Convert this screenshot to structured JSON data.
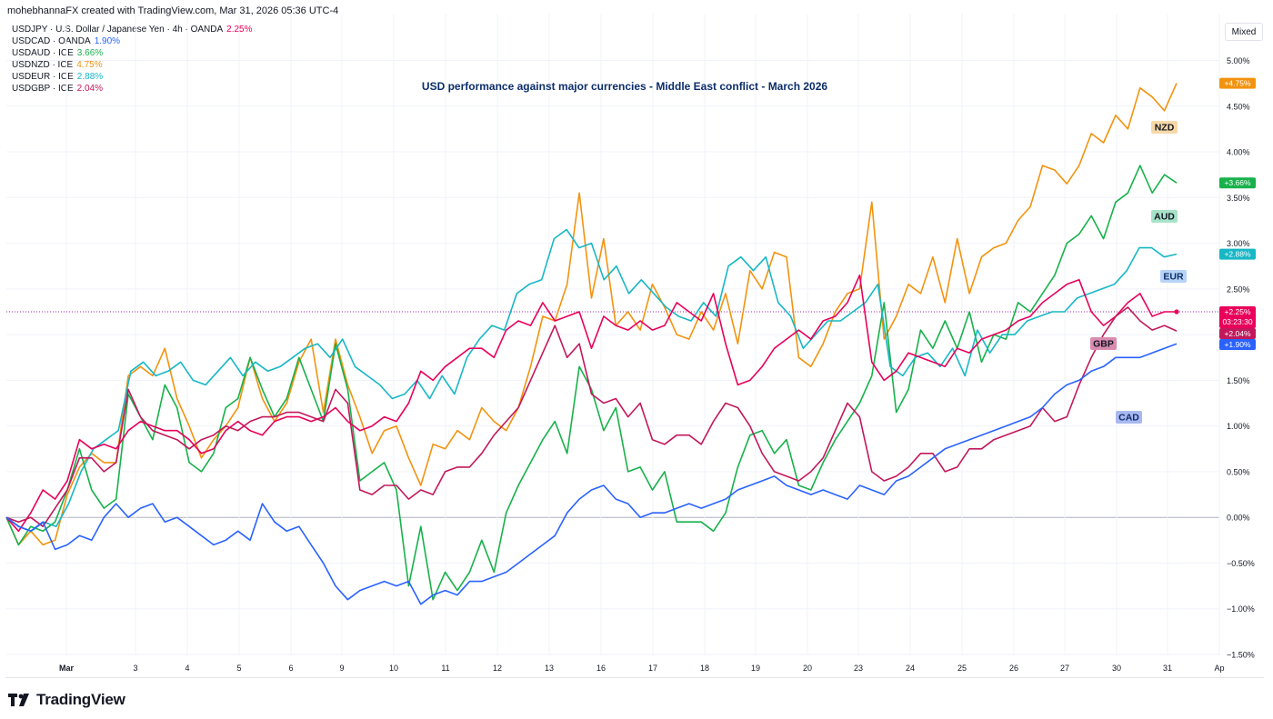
{
  "credit": "mohebhannaFX created with TradingView.com, Mar 31, 2026 05:36 UTC-4",
  "legend": [
    {
      "label": "USDJPY · U.S. Dollar / Japanese Yen · 4h · OANDA",
      "value": "2.25%",
      "color": "#e8005a"
    },
    {
      "label": "USDCAD · OANDA",
      "value": "1.90%",
      "color": "#2962ff"
    },
    {
      "label": "USDAUD · ICE",
      "value": "3.66%",
      "color": "#18b14b"
    },
    {
      "label": "USDNZD · ICE",
      "value": "4.75%",
      "color": "#f2930f"
    },
    {
      "label": "USDEUR · ICE",
      "value": "2.88%",
      "color": "#17b7c5"
    },
    {
      "label": "USDGBP · ICE",
      "value": "2.04%",
      "color": "#c2185b"
    }
  ],
  "mixed_label": "Mixed",
  "brand": "TradingView",
  "chart_data": {
    "type": "line",
    "title": "USD performance against major currencies - Middle East conflict - March 2026",
    "x_ticks": [
      "Mar",
      "3",
      "4",
      "5",
      "6",
      "9",
      "10",
      "11",
      "12",
      "13",
      "16",
      "17",
      "18",
      "19",
      "20",
      "23",
      "24",
      "25",
      "26",
      "27",
      "30",
      "31",
      "Ap"
    ],
    "y_ticks": [
      "5.00%",
      "4.50%",
      "4.00%",
      "3.50%",
      "3.00%",
      "2.50%",
      "2.00%",
      "1.50%",
      "1.00%",
      "0.50%",
      "0.00%",
      "−0.50%",
      "−1.00%",
      "−1.50%"
    ],
    "ylim": [
      -1.5,
      5.0
    ],
    "grid": true,
    "crosshair_y": 2.25,
    "series": [
      {
        "name": "NZD",
        "color": "#f2930f",
        "last_label": "+4.75%",
        "values": [
          0,
          -0.3,
          -0.15,
          -0.3,
          -0.25,
          0.25,
          0.55,
          0.7,
          0.6,
          0.6,
          1.55,
          1.65,
          1.55,
          1.85,
          1.3,
          1.0,
          0.65,
          0.85,
          1.0,
          1.2,
          1.75,
          1.3,
          1.05,
          1.25,
          1.7,
          1.95,
          1.15,
          1.95,
          1.45,
          1.1,
          0.7,
          0.95,
          1.0,
          0.65,
          0.35,
          0.8,
          0.75,
          0.95,
          0.85,
          1.2,
          1.05,
          0.95,
          1.2,
          1.65,
          2.2,
          2.15,
          2.55,
          3.55,
          2.4,
          3.05,
          2.1,
          2.25,
          2.05,
          2.55,
          2.3,
          2.0,
          1.95,
          2.25,
          2.05,
          2.45,
          1.9,
          2.7,
          2.5,
          2.9,
          2.85,
          1.75,
          1.65,
          1.9,
          2.25,
          2.45,
          2.5,
          3.45,
          1.95,
          2.2,
          2.55,
          2.45,
          2.85,
          2.35,
          3.05,
          2.45,
          2.85,
          2.95,
          3.0,
          3.25,
          3.4,
          3.85,
          3.8,
          3.65,
          3.85,
          4.2,
          4.1,
          4.4,
          4.25,
          4.7,
          4.6,
          4.45,
          4.75
        ]
      },
      {
        "name": "AUD",
        "color": "#18b14b",
        "last_label": "+3.66%",
        "values": [
          0,
          -0.3,
          -0.1,
          -0.15,
          -0.05,
          0.3,
          0.75,
          0.3,
          0.1,
          0.2,
          1.35,
          1.1,
          0.85,
          1.45,
          1.2,
          0.6,
          0.5,
          0.7,
          1.2,
          1.3,
          1.75,
          1.4,
          1.1,
          1.3,
          1.75,
          1.4,
          1.05,
          1.9,
          1.4,
          0.4,
          0.5,
          0.6,
          0.3,
          -0.75,
          -0.1,
          -0.9,
          -0.6,
          -0.8,
          -0.6,
          -0.25,
          -0.6,
          0.05,
          0.35,
          0.6,
          0.85,
          1.05,
          0.7,
          1.65,
          1.4,
          0.95,
          1.2,
          0.5,
          0.55,
          0.3,
          0.5,
          -0.05,
          -0.05,
          -0.05,
          -0.15,
          0.05,
          0.55,
          0.9,
          0.95,
          0.7,
          0.85,
          0.35,
          0.3,
          0.6,
          0.85,
          1.05,
          1.25,
          1.55,
          2.35,
          1.15,
          1.4,
          2.05,
          1.85,
          2.15,
          1.85,
          2.25,
          1.7,
          2.0,
          1.95,
          2.35,
          2.25,
          2.45,
          2.65,
          3.0,
          3.1,
          3.3,
          3.05,
          3.45,
          3.55,
          3.85,
          3.55,
          3.75,
          3.66
        ]
      },
      {
        "name": "EUR",
        "color": "#17b7c5",
        "last_label": "+2.88%",
        "values": [
          0,
          -0.1,
          -0.15,
          -0.05,
          -0.1,
          0.15,
          0.5,
          0.75,
          0.85,
          0.95,
          1.6,
          1.7,
          1.55,
          1.6,
          1.7,
          1.5,
          1.45,
          1.6,
          1.75,
          1.55,
          1.7,
          1.6,
          1.65,
          1.75,
          1.85,
          1.9,
          1.75,
          1.95,
          1.65,
          1.55,
          1.45,
          1.3,
          1.35,
          1.5,
          1.3,
          1.55,
          1.35,
          1.75,
          1.95,
          2.1,
          2.05,
          2.45,
          2.55,
          2.6,
          3.05,
          3.15,
          2.95,
          3.0,
          2.6,
          2.75,
          2.45,
          2.6,
          2.45,
          2.3,
          2.2,
          2.15,
          2.35,
          2.2,
          2.75,
          2.85,
          2.7,
          2.85,
          2.35,
          2.2,
          1.85,
          2.0,
          2.15,
          2.15,
          2.25,
          2.35,
          2.55,
          1.65,
          1.55,
          1.75,
          1.8,
          1.65,
          1.85,
          1.55,
          2.05,
          1.8,
          2.0,
          2.0,
          2.15,
          2.2,
          2.25,
          2.25,
          2.4,
          2.45,
          2.5,
          2.55,
          2.7,
          2.95,
          2.95,
          2.85,
          2.88
        ]
      },
      {
        "name": "GBP",
        "color": "#e8005a",
        "last_label": "+2.25%",
        "values": [
          0,
          -0.15,
          0.05,
          0.3,
          0.2,
          0.4,
          0.85,
          0.75,
          0.8,
          0.75,
          0.95,
          1.05,
          1.0,
          0.95,
          0.95,
          0.85,
          0.7,
          0.75,
          0.95,
          1.05,
          0.95,
          0.9,
          1.05,
          1.1,
          1.1,
          1.05,
          1.1,
          1.2,
          1.05,
          0.95,
          1.0,
          1.1,
          1.05,
          1.25,
          1.6,
          1.5,
          1.65,
          1.75,
          1.85,
          1.85,
          1.75,
          2.05,
          2.15,
          2.1,
          2.35,
          2.15,
          2.2,
          2.25,
          1.85,
          2.2,
          2.1,
          2.05,
          2.15,
          2.05,
          2.1,
          2.35,
          2.25,
          2.15,
          2.45,
          1.9,
          1.45,
          1.5,
          1.65,
          1.85,
          1.95,
          2.05,
          1.95,
          2.15,
          2.2,
          2.35,
          2.65,
          1.7,
          1.5,
          1.6,
          1.8,
          1.75,
          1.7,
          1.65,
          1.85,
          1.8,
          1.95,
          2.0,
          2.05,
          2.15,
          2.2,
          2.35,
          2.45,
          2.55,
          2.6,
          2.25,
          2.1,
          2.2,
          2.35,
          2.45,
          2.2,
          2.25,
          2.25
        ]
      },
      {
        "name": "GBP",
        "color": "#c2185b",
        "last_label": "+2.04%",
        "values": [
          0,
          -0.05,
          0,
          -0.1,
          0.1,
          0.3,
          0.65,
          0.65,
          0.5,
          0.6,
          1.4,
          1.1,
          0.95,
          0.9,
          0.85,
          0.75,
          0.85,
          0.9,
          1.0,
          0.95,
          1.05,
          1.1,
          1.1,
          1.15,
          1.15,
          1.1,
          1.05,
          1.4,
          1.25,
          0.3,
          0.25,
          0.35,
          0.35,
          0.2,
          0.3,
          0.25,
          0.5,
          0.55,
          0.55,
          0.7,
          0.9,
          1.05,
          1.2,
          1.5,
          1.8,
          2.1,
          1.75,
          1.9,
          1.35,
          1.25,
          1.3,
          1.1,
          1.25,
          0.85,
          0.8,
          0.9,
          0.9,
          0.8,
          1.05,
          1.25,
          1.2,
          1.0,
          0.7,
          0.5,
          0.45,
          0.4,
          0.5,
          0.65,
          0.95,
          1.25,
          1.1,
          0.5,
          0.4,
          0.45,
          0.55,
          0.7,
          0.7,
          0.5,
          0.55,
          0.75,
          0.75,
          0.85,
          0.9,
          0.95,
          1.0,
          1.2,
          1.05,
          1.1,
          1.45,
          1.75,
          2.0,
          2.2,
          2.3,
          2.15,
          2.05,
          2.1,
          2.04
        ]
      },
      {
        "name": "CAD",
        "color": "#2962ff",
        "last_label": "+1.90%",
        "values": [
          0,
          -0.1,
          -0.15,
          -0.05,
          -0.35,
          -0.3,
          -0.2,
          -0.25,
          0.0,
          0.15,
          0.0,
          0.1,
          0.15,
          -0.05,
          0.0,
          -0.1,
          -0.2,
          -0.3,
          -0.25,
          -0.15,
          -0.25,
          0.15,
          -0.05,
          -0.15,
          -0.1,
          -0.3,
          -0.5,
          -0.75,
          -0.9,
          -0.8,
          -0.75,
          -0.7,
          -0.75,
          -0.7,
          -0.95,
          -0.85,
          -0.8,
          -0.85,
          -0.7,
          -0.7,
          -0.65,
          -0.6,
          -0.5,
          -0.4,
          -0.3,
          -0.2,
          0.05,
          0.2,
          0.3,
          0.35,
          0.2,
          0.15,
          0.0,
          0.05,
          0.05,
          0.1,
          0.15,
          0.1,
          0.15,
          0.2,
          0.3,
          0.35,
          0.4,
          0.45,
          0.35,
          0.3,
          0.25,
          0.3,
          0.25,
          0.2,
          0.35,
          0.3,
          0.25,
          0.4,
          0.45,
          0.55,
          0.65,
          0.75,
          0.8,
          0.85,
          0.9,
          0.95,
          1.0,
          1.05,
          1.1,
          1.2,
          1.35,
          1.45,
          1.5,
          1.6,
          1.65,
          1.75,
          1.75,
          1.75,
          1.8,
          1.85,
          1.9
        ]
      }
    ],
    "annotations": [
      {
        "text": "NZD",
        "bg": "#f7d9a8",
        "fg": "#131722"
      },
      {
        "text": "AUD",
        "bg": "#a7e3c9",
        "fg": "#131722"
      },
      {
        "text": "EUR",
        "bg": "#b7d3f5",
        "fg": "#0c2d6b"
      },
      {
        "text": "GBP",
        "bg": "#d98cb0",
        "fg": "#131722"
      },
      {
        "text": "CAD",
        "bg": "#a9b9f0",
        "fg": "#0c2d6b"
      }
    ],
    "crosshair_time": "03:23:30"
  }
}
